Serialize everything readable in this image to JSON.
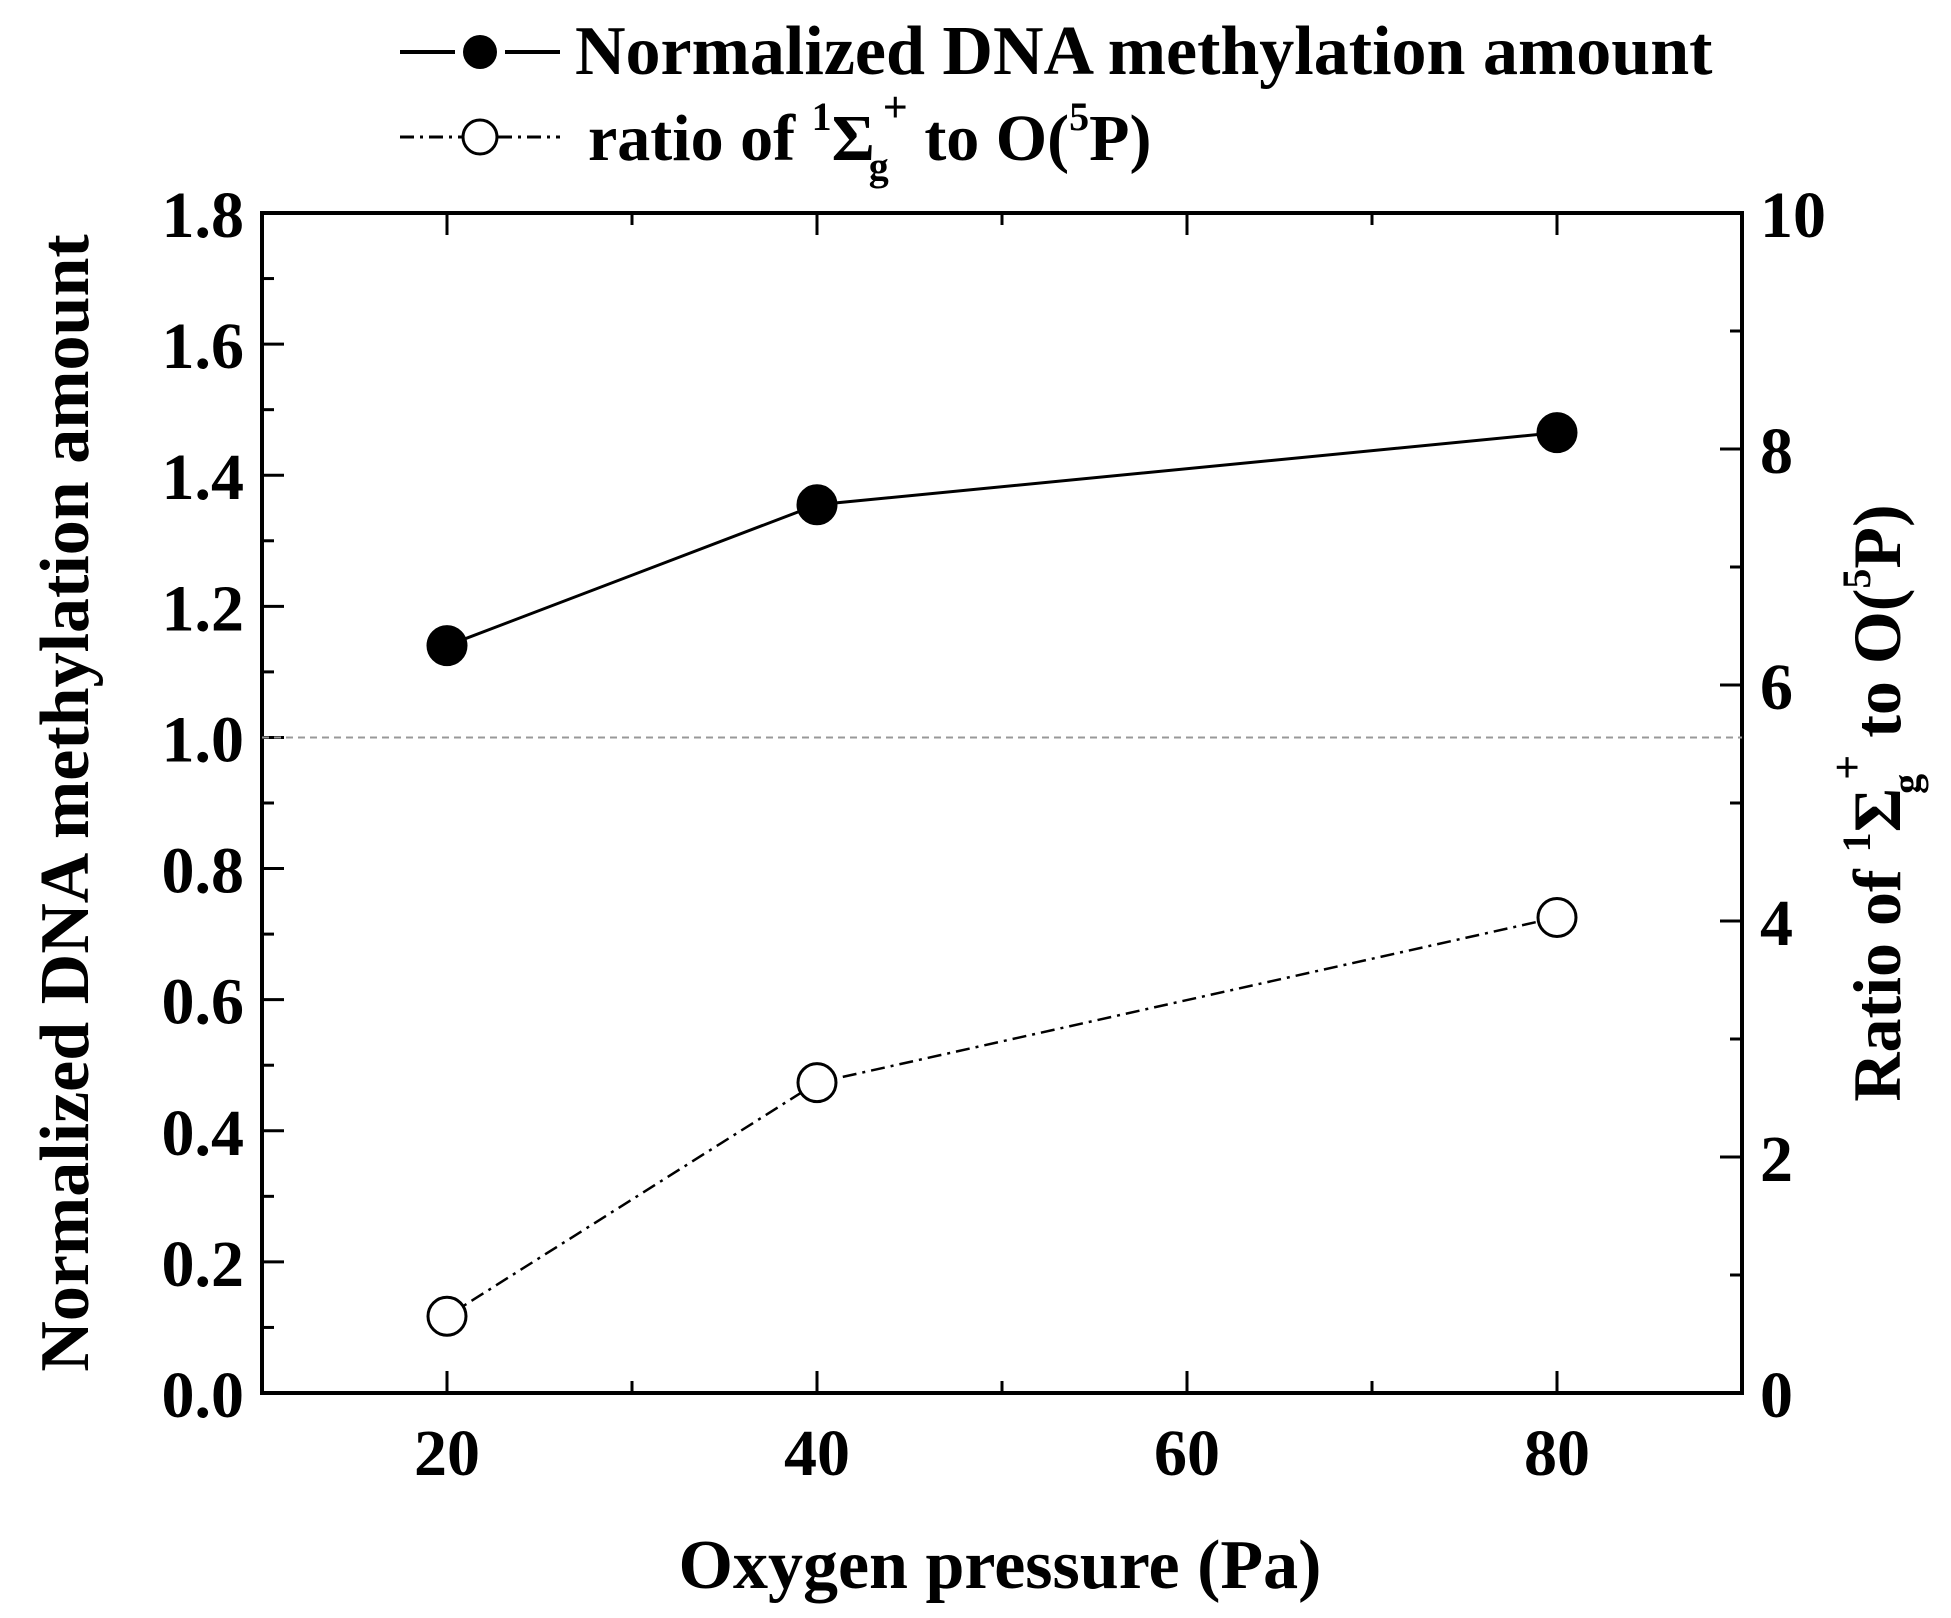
{
  "chart_data": {
    "type": "line",
    "x": [
      20,
      40,
      80
    ],
    "xlabel": "Oxygen pressure (Pa)",
    "xlim": [
      10,
      90
    ],
    "xticks": [
      20,
      40,
      60,
      80
    ],
    "xminor": [
      30,
      50,
      70
    ],
    "left_axis": {
      "label": "Normalized DNA methylation amount",
      "ylim": [
        0,
        1.8
      ],
      "ticks": [
        "0.0",
        "0.2",
        "0.4",
        "0.6",
        "0.8",
        "1.0",
        "1.2",
        "1.4",
        "1.6",
        "1.8"
      ],
      "minor": [
        0.1,
        0.3,
        0.5,
        0.7,
        0.9,
        1.1,
        1.3,
        1.5,
        1.7
      ]
    },
    "right_axis": {
      "label_pre": "Ratio of ",
      "label_sup1": "1",
      "label_sym": "Σ",
      "label_sub": "g",
      "label_sup2": "+",
      "label_mid": " to O(",
      "label_sup3": "5",
      "label_post": "P)",
      "ylim": [
        0,
        10
      ],
      "ticks": [
        "0",
        "2",
        "4",
        "6",
        "8",
        "10"
      ],
      "minor": [
        1,
        3,
        5,
        7,
        9
      ]
    },
    "reference_line": {
      "y": 1.0,
      "axis": "left",
      "style": "dashed"
    },
    "series": [
      {
        "name": "Normalized DNA methylation amount",
        "axis": "left",
        "marker": "filled-circle",
        "line": "solid",
        "values": [
          1.14,
          1.355,
          1.465
        ]
      },
      {
        "name": "ratio of 1Σg+ to O(5P)",
        "axis": "right",
        "marker": "open-circle",
        "line": "dash-dot",
        "values": [
          0.65,
          2.63,
          4.03
        ]
      }
    ],
    "legend": {
      "placement": "top",
      "entry1": "Normalized DNA methylation amount",
      "entry2_pre": "ratio of ",
      "entry2_sup1": "1",
      "entry2_sym": "Σ",
      "entry2_sub": "g",
      "entry2_sup2": "+",
      "entry2_mid": " to O(",
      "entry2_sup3": "5",
      "entry2_post": "P)"
    }
  }
}
